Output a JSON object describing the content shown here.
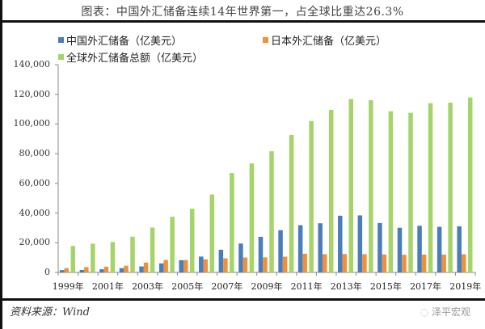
{
  "title": "图表：中国外汇储备连续14年世界第一，占全球比重达26.3%",
  "legend": {
    "china": "中国外汇储备（亿美元）",
    "japan": "日本外汇储备（亿美元）",
    "world": "全球外汇储备总额（亿美元）"
  },
  "colors": {
    "china": "#4a7ebb",
    "japan": "#f0913a",
    "world": "#a5d46a"
  },
  "source": "资料来源：Wind",
  "brand": "泽平宏观",
  "y_ticks": [
    "140,000",
    "120,000",
    "100,000",
    "80,000",
    "60,000",
    "40,000",
    "20,000",
    "0"
  ],
  "x_ticks": [
    "1999年",
    "2001年",
    "2003年",
    "2005年",
    "2007年",
    "2009年",
    "2011年",
    "2013年",
    "2015年",
    "2017年",
    "2019年"
  ],
  "chart_data": {
    "type": "bar",
    "title": "图表：中国外汇储备连续14年世界第一，占全球比重达26.3%",
    "xlabel": "",
    "ylabel": "",
    "ylim": [
      0,
      140000
    ],
    "grid": false,
    "legend_position": "top",
    "categories": [
      "1999",
      "2000",
      "2001",
      "2002",
      "2003",
      "2004",
      "2005",
      "2006",
      "2007",
      "2008",
      "2009",
      "2010",
      "2011",
      "2012",
      "2013",
      "2014",
      "2015",
      "2016",
      "2017",
      "2018",
      "2019"
    ],
    "series": [
      {
        "name": "中国外汇储备（亿美元）",
        "values": [
          1547,
          1656,
          2122,
          2864,
          4033,
          6099,
          8189,
          10663,
          15282,
          19460,
          23992,
          28473,
          31811,
          33116,
          38213,
          38430,
          33304,
          30105,
          31399,
          30727,
          31079
        ]
      },
      {
        "name": "日本外汇储备（亿美元）",
        "values": [
          2880,
          3550,
          3880,
          4520,
          6640,
          8330,
          8350,
          8800,
          9520,
          10050,
          10170,
          10610,
          12580,
          12270,
          12370,
          12310,
          12080,
          11890,
          12020,
          12000,
          12230
        ]
      },
      {
        "name": "全球外汇储备总额（亿美元）",
        "values": [
          17820,
          19360,
          20490,
          24080,
          30250,
          37480,
          42880,
          52530,
          66990,
          73460,
          81650,
          92650,
          102060,
          109520,
          116870,
          116050,
          108620,
          107600,
          114080,
          114360,
          117880
        ]
      }
    ]
  }
}
